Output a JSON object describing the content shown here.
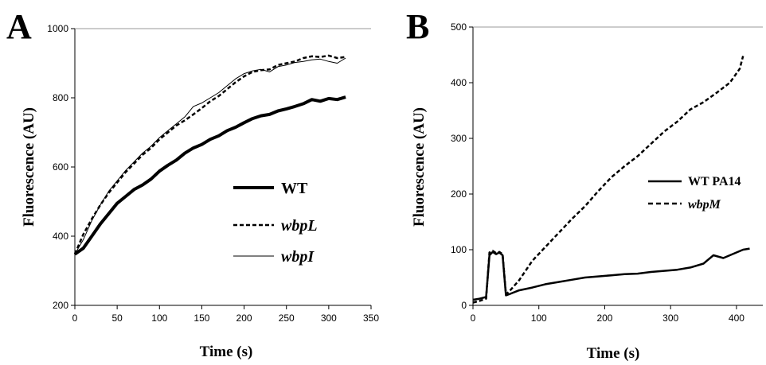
{
  "chart_data": [
    {
      "panel_label": "A",
      "type": "line",
      "xlabel": "Time (s)",
      "ylabel": "Fluorescence (AU)",
      "xlim": [
        0,
        350
      ],
      "ylim": [
        200,
        1000
      ],
      "xticks": [
        0,
        50,
        100,
        150,
        200,
        250,
        300,
        350
      ],
      "yticks": [
        200,
        400,
        600,
        800,
        1000
      ],
      "legend_position": "lower-right",
      "series": [
        {
          "name": "WT",
          "style": "thick-solid",
          "x": [
            0,
            10,
            20,
            30,
            40,
            50,
            60,
            70,
            80,
            90,
            100,
            110,
            120,
            130,
            140,
            150,
            160,
            170,
            180,
            190,
            200,
            210,
            220,
            230,
            240,
            250,
            260,
            270,
            280,
            290,
            300,
            310,
            320
          ],
          "y": [
            348,
            365,
            400,
            435,
            465,
            495,
            515,
            535,
            548,
            565,
            588,
            605,
            620,
            640,
            655,
            665,
            680,
            690,
            705,
            715,
            728,
            740,
            748,
            752,
            762,
            768,
            775,
            783,
            795,
            790,
            798,
            795,
            802
          ]
        },
        {
          "name": "wbpL",
          "style": "dashed",
          "x": [
            0,
            10,
            20,
            30,
            40,
            50,
            60,
            70,
            80,
            90,
            100,
            110,
            120,
            130,
            140,
            150,
            160,
            170,
            180,
            190,
            200,
            210,
            220,
            230,
            240,
            250,
            260,
            270,
            280,
            290,
            300,
            310,
            320
          ],
          "y": [
            348,
            405,
            450,
            490,
            525,
            555,
            585,
            610,
            635,
            655,
            680,
            700,
            720,
            735,
            752,
            770,
            790,
            805,
            825,
            845,
            862,
            875,
            880,
            882,
            895,
            900,
            905,
            915,
            920,
            918,
            922,
            915,
            918
          ]
        },
        {
          "name": "wbpI",
          "style": "thin-solid",
          "x": [
            0,
            10,
            20,
            30,
            40,
            50,
            60,
            70,
            80,
            90,
            100,
            110,
            120,
            130,
            140,
            150,
            160,
            170,
            180,
            190,
            200,
            210,
            220,
            230,
            240,
            250,
            260,
            270,
            280,
            290,
            300,
            310,
            320
          ],
          "y": [
            348,
            390,
            445,
            490,
            530,
            560,
            590,
            615,
            640,
            660,
            685,
            705,
            725,
            745,
            775,
            785,
            800,
            815,
            835,
            855,
            870,
            878,
            882,
            875,
            890,
            895,
            902,
            905,
            910,
            912,
            905,
            900,
            915
          ]
        }
      ]
    },
    {
      "panel_label": "B",
      "type": "line",
      "xlabel": "Time (s)",
      "ylabel": "Fluorescence (AU)",
      "xlim": [
        0,
        440
      ],
      "ylim": [
        0,
        500
      ],
      "xticks": [
        0,
        100,
        200,
        300,
        400
      ],
      "yticks": [
        0,
        100,
        200,
        300,
        400,
        500
      ],
      "legend_position": "right",
      "series": [
        {
          "name": "WT PA14",
          "style": "solid",
          "x": [
            0,
            10,
            20,
            25,
            30,
            35,
            40,
            45,
            50,
            55,
            70,
            90,
            110,
            130,
            150,
            170,
            190,
            210,
            230,
            250,
            270,
            290,
            310,
            330,
            350,
            365,
            380,
            400,
            410,
            420
          ],
          "y": [
            10,
            12,
            15,
            90,
            96,
            92,
            95,
            90,
            18,
            20,
            27,
            32,
            38,
            42,
            46,
            50,
            52,
            54,
            56,
            57,
            60,
            62,
            64,
            68,
            75,
            90,
            85,
            95,
            100,
            102
          ]
        },
        {
          "name": "wbpM",
          "style": "dashed",
          "x": [
            0,
            10,
            20,
            25,
            30,
            35,
            40,
            45,
            50,
            55,
            70,
            90,
            110,
            130,
            150,
            170,
            190,
            210,
            230,
            250,
            270,
            290,
            310,
            330,
            350,
            370,
            390,
            405,
            410
          ],
          "y": [
            5,
            8,
            12,
            95,
            98,
            94,
            96,
            92,
            20,
            25,
            45,
            80,
            105,
            130,
            155,
            178,
            205,
            230,
            250,
            268,
            290,
            312,
            330,
            352,
            365,
            382,
            400,
            425,
            448
          ]
        }
      ]
    }
  ]
}
